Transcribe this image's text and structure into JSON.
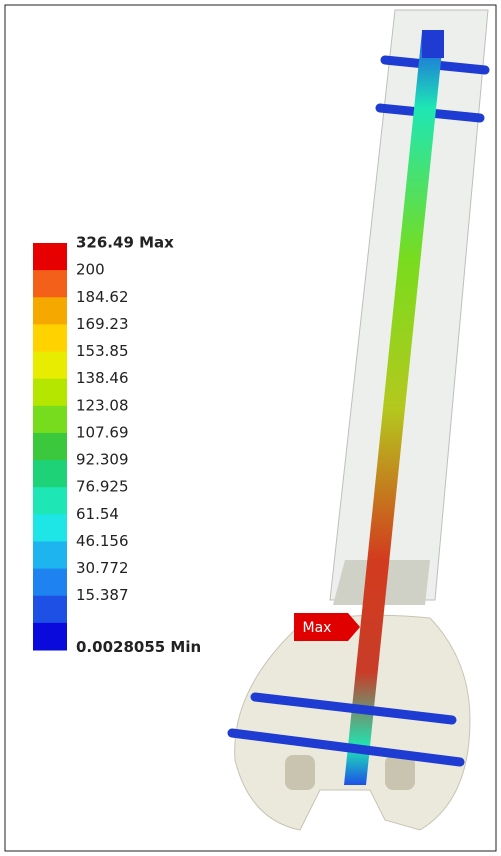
{
  "legend": {
    "entries": [
      {
        "label": "326.49 Max",
        "color": "#e60000"
      },
      {
        "label": "200",
        "color": "#f2601a"
      },
      {
        "label": "184.62",
        "color": "#f5a800"
      },
      {
        "label": "169.23",
        "color": "#ffd200"
      },
      {
        "label": "153.85",
        "color": "#e8ec00"
      },
      {
        "label": "138.46",
        "color": "#b4e600"
      },
      {
        "label": "123.08",
        "color": "#78dc1e"
      },
      {
        "label": "107.69",
        "color": "#3cc83c"
      },
      {
        "label": "92.309",
        "color": "#1ed278"
      },
      {
        "label": "76.925",
        "color": "#1ee6b4"
      },
      {
        "label": "61.54",
        "color": "#1ee6e6"
      },
      {
        "label": "46.156",
        "color": "#1eb4f0"
      },
      {
        "label": "30.772",
        "color": "#1e82f0"
      },
      {
        "label": "15.387",
        "color": "#1e50e6"
      },
      {
        "label": "0.0028055 Min",
        "color": "#0a0adc"
      }
    ]
  },
  "marker": {
    "label": "Max"
  }
}
